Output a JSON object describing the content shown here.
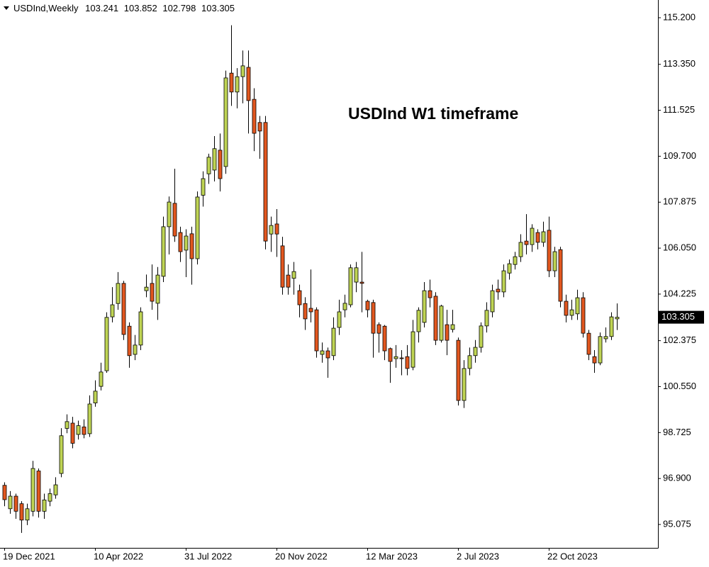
{
  "chart_data": {
    "type": "candlestick",
    "symbol": "USDInd,Weekly",
    "annotation": "USDInd W1 timeframe",
    "categories": [
      "19 Dec 2021",
      null,
      null,
      null,
      null,
      null,
      null,
      null,
      null,
      null,
      null,
      null,
      null,
      null,
      null,
      null,
      "10 Apr 2022",
      null,
      null,
      null,
      null,
      null,
      null,
      null,
      null,
      null,
      null,
      null,
      null,
      null,
      null,
      null,
      "31 Jul 2022",
      null,
      null,
      null,
      null,
      null,
      null,
      null,
      null,
      null,
      null,
      null,
      null,
      null,
      null,
      null,
      "20 Nov 2022",
      null,
      null,
      null,
      null,
      null,
      null,
      null,
      null,
      null,
      null,
      null,
      null,
      null,
      null,
      null,
      "12 Mar 2023",
      null,
      null,
      null,
      null,
      null,
      null,
      null,
      null,
      null,
      null,
      null,
      null,
      null,
      null,
      null,
      "2 Jul 2023",
      null,
      null,
      null,
      null,
      null,
      null,
      null,
      null,
      null,
      null,
      null,
      null,
      null,
      null,
      null,
      "22 Oct 2023",
      null,
      null,
      null,
      null,
      null,
      null,
      null,
      null,
      null,
      null,
      null,
      null
    ],
    "open": [
      96.63,
      95.7,
      96.2,
      95.9,
      95.25,
      95.6,
      97.2,
      95.6,
      96.0,
      96.25,
      97.1,
      98.89,
      99.1,
      98.65,
      98.95,
      98.68,
      99.9,
      100.56,
      101.18,
      103.32,
      103.85,
      104.65,
      102.95,
      101.83,
      102.2,
      104.36,
      104.65,
      103.86,
      104.93,
      106.9,
      107.83,
      106.67,
      105.97,
      106.62,
      105.63,
      108.15,
      109.0,
      109.15,
      109.94,
      109.29,
      113.0,
      112.25,
      112.86,
      113.23,
      111.96,
      111.04,
      111.04,
      106.61,
      107.01,
      106.14,
      104.98,
      104.85,
      104.36,
      103.85,
      103.66,
      103.6,
      101.83,
      101.97,
      101.78,
      102.9,
      103.6,
      103.8,
      104.7,
      104.7,
      103.94,
      103.89,
      103.01,
      102.95,
      102.06,
      101.66,
      101.69,
      101.74,
      101.32,
      102.73,
      103.1,
      104.36,
      104.14,
      102.39,
      103.01,
      102.82,
      102.39,
      100.0,
      101.27,
      101.78,
      102.11,
      102.96,
      103.52,
      104.42,
      104.31,
      105.06,
      105.4,
      105.71,
      106.33,
      106.19,
      106.67,
      106.28,
      106.76,
      105.15,
      105.99,
      103.94,
      103.38,
      103.44,
      104.08,
      102.67,
      101.74,
      101.49,
      102.45,
      102.54,
      103.241
    ],
    "high": [
      96.75,
      96.4,
      96.3,
      96.0,
      95.9,
      97.6,
      97.3,
      96.3,
      96.5,
      96.95,
      98.9,
      99.45,
      99.35,
      99.2,
      99.25,
      100.2,
      100.8,
      101.5,
      103.5,
      104.5,
      105.1,
      104.75,
      103.1,
      102.6,
      103.7,
      105.0,
      105.4,
      105.3,
      107.3,
      108.1,
      109.2,
      106.9,
      106.8,
      106.9,
      108.3,
      109.1,
      109.8,
      110.5,
      110.6,
      113.1,
      114.9,
      113.2,
      113.9,
      113.9,
      112.4,
      111.3,
      111.3,
      107.3,
      107.6,
      106.5,
      105.4,
      105.5,
      104.6,
      104.1,
      105.2,
      103.7,
      102.3,
      102.1,
      103.3,
      104.0,
      104.2,
      105.4,
      105.5,
      105.9,
      104.0,
      104.0,
      103.1,
      103.0,
      102.1,
      102.2,
      102.0,
      102.2,
      103.2,
      103.7,
      104.7,
      104.8,
      104.3,
      103.8,
      103.6,
      103.6,
      102.5,
      101.6,
      102.1,
      102.4,
      103.1,
      103.9,
      104.6,
      104.8,
      105.4,
      105.6,
      105.9,
      106.6,
      107.4,
      107.0,
      106.8,
      107.1,
      107.3,
      106.1,
      106.1,
      104.2,
      104.0,
      104.4,
      104.3,
      102.8,
      102.0,
      102.7,
      102.9,
      103.5,
      103.852
    ],
    "low": [
      95.8,
      95.5,
      95.3,
      94.74,
      95.05,
      95.4,
      95.35,
      95.3,
      95.8,
      96.1,
      96.95,
      98.7,
      98.1,
      98.45,
      98.5,
      98.55,
      99.75,
      100.4,
      101.1,
      103.1,
      103.6,
      102.4,
      101.3,
      101.6,
      102.0,
      104.1,
      103.6,
      103.2,
      104.7,
      105.8,
      106.3,
      105.5,
      104.9,
      104.6,
      105.4,
      107.7,
      108.6,
      108.7,
      108.3,
      109.0,
      111.7,
      111.6,
      111.8,
      110.6,
      109.9,
      109.6,
      106.0,
      105.9,
      105.7,
      104.2,
      104.2,
      104.2,
      103.3,
      102.8,
      103.1,
      101.7,
      101.5,
      100.9,
      101.6,
      102.6,
      103.3,
      103.7,
      104.3,
      103.5,
      103.3,
      101.7,
      101.9,
      101.6,
      100.7,
      101.3,
      101.0,
      101.0,
      101.2,
      102.3,
      102.9,
      103.7,
      102.2,
      102.3,
      101.8,
      102.7,
      99.8,
      99.7,
      101.0,
      101.5,
      101.9,
      102.7,
      103.3,
      104.0,
      104.1,
      104.8,
      105.2,
      105.5,
      105.8,
      105.9,
      106.0,
      106.1,
      104.9,
      104.9,
      103.7,
      103.1,
      103.2,
      103.2,
      102.5,
      101.6,
      101.1,
      101.4,
      102.3,
      102.4,
      102.798
    ],
    "close": [
      96.06,
      96.2,
      95.6,
      95.25,
      95.7,
      97.3,
      95.6,
      96.05,
      96.3,
      96.65,
      98.6,
      99.16,
      98.3,
      99.0,
      98.65,
      99.86,
      100.37,
      101.13,
      103.3,
      103.8,
      104.65,
      102.62,
      101.78,
      102.2,
      103.52,
      104.5,
      103.94,
      104.98,
      106.9,
      107.88,
      106.53,
      105.91,
      106.53,
      105.63,
      108.08,
      108.81,
      109.66,
      110.0,
      108.81,
      112.81,
      112.25,
      112.86,
      113.29,
      111.91,
      110.61,
      110.7,
      106.33,
      106.95,
      106.61,
      104.5,
      104.5,
      105.12,
      103.8,
      103.24,
      103.52,
      101.97,
      101.97,
      101.69,
      102.87,
      103.52,
      103.86,
      105.27,
      105.27,
      104.65,
      103.6,
      102.67,
      102.67,
      101.97,
      101.55,
      101.74,
      101.66,
      101.27,
      102.73,
      103.58,
      104.36,
      104.08,
      102.39,
      103.75,
      102.39,
      103.01,
      100.0,
      101.27,
      101.78,
      102.11,
      102.96,
      103.58,
      104.36,
      104.31,
      105.15,
      105.43,
      105.71,
      106.28,
      106.19,
      106.84,
      106.28,
      106.7,
      105.15,
      105.91,
      103.94,
      103.38,
      103.6,
      104.08,
      102.67,
      101.83,
      101.49,
      102.54,
      102.54,
      103.32,
      103.305
    ],
    "up_color": "#bfd454",
    "down_color": "#e2571f",
    "ylim": [
      94.146,
      115.904
    ],
    "yticks": [
      {
        "value": 95.075,
        "label": "95.075"
      },
      {
        "value": 96.9,
        "label": "96.900"
      },
      {
        "value": 98.725,
        "label": "98.725"
      },
      {
        "value": 100.55,
        "label": "100.550"
      },
      {
        "value": 102.375,
        "label": "102.375"
      },
      {
        "value": 104.225,
        "label": "104.225"
      },
      {
        "value": 106.05,
        "label": "106.050"
      },
      {
        "value": 107.875,
        "label": "107.875"
      },
      {
        "value": 109.7,
        "label": "109.700"
      },
      {
        "value": 111.525,
        "label": "111.525"
      },
      {
        "value": 113.35,
        "label": "113.350"
      },
      {
        "value": 115.2,
        "label": "115.200"
      }
    ]
  }
}
